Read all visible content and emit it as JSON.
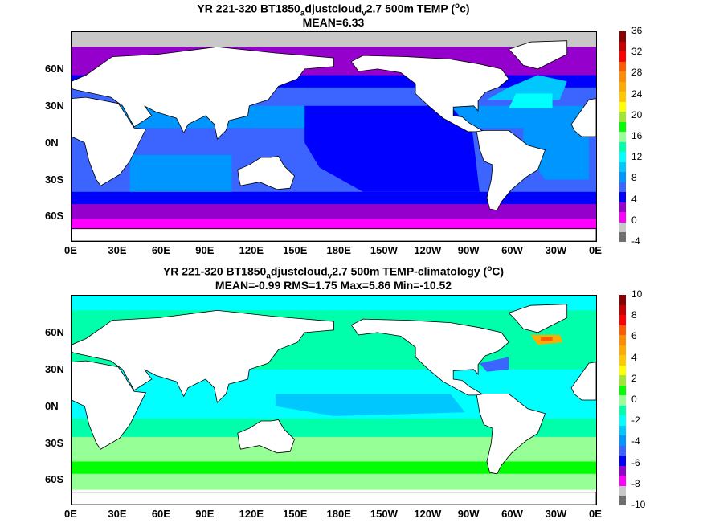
{
  "chart_data": [
    {
      "type": "heatmap",
      "title_parts": {
        "a": "YR 221-320 BT1850",
        "sub1": "a",
        "b": "djustcloud",
        "sub2": "v",
        "c": "2.7 500m TEMP (",
        "sup": "o",
        "d": "c)"
      },
      "subtitle": "MEAN=6.33",
      "x_ticks": [
        "0E",
        "30E",
        "60E",
        "90E",
        "120E",
        "150E",
        "180E",
        "150W",
        "120W",
        "90W",
        "60W",
        "30W",
        "0E"
      ],
      "y_ticks": [
        "60N",
        "30N",
        "0N",
        "30S",
        "60S"
      ],
      "y_tick_values": [
        60,
        30,
        0,
        -30,
        -60
      ],
      "xlim": [
        0,
        360
      ],
      "ylim": [
        -80,
        90
      ],
      "colorbar": {
        "ticks": [
          "-4",
          "0",
          "4",
          "8",
          "12",
          "16",
          "20",
          "24",
          "28",
          "32",
          "36"
        ],
        "colors": [
          "#6e6e6e",
          "#c8c8c8",
          "#ff00ff",
          "#9600cd",
          "#0000ff",
          "#3c64ff",
          "#0096ff",
          "#00c8ff",
          "#00ffff",
          "#00ffaa",
          "#96ff96",
          "#00ff00",
          "#a0e632",
          "#ffff00",
          "#ffc800",
          "#ffaa00",
          "#ff8c00",
          "#ff5a00",
          "#ff0000",
          "#c80000",
          "#8b0000"
        ]
      }
    },
    {
      "type": "heatmap",
      "title_parts": {
        "a": "YR 221-320 BT1850",
        "sub1": "a",
        "b": "djustcloud",
        "sub2": "v",
        "c": "2.7 500m TEMP-climatology (",
        "sup": "o",
        "d": "C)"
      },
      "subtitle": "MEAN=-0.99   RMS=1.75   Max=5.86   Min=-10.52",
      "x_ticks": [
        "0E",
        "30E",
        "60E",
        "90E",
        "120E",
        "150E",
        "180E",
        "150W",
        "120W",
        "90W",
        "60W",
        "30W",
        "0E"
      ],
      "y_ticks": [
        "60N",
        "30N",
        "0N",
        "30S",
        "60S"
      ],
      "y_tick_values": [
        60,
        30,
        0,
        -30,
        -60
      ],
      "xlim": [
        0,
        360
      ],
      "ylim": [
        -80,
        90
      ],
      "colorbar": {
        "ticks": [
          "-10",
          "-8",
          "-6",
          "-4",
          "-2",
          "0",
          "2",
          "4",
          "6",
          "8",
          "10"
        ],
        "colors": [
          "#6e6e6e",
          "#c8c8c8",
          "#ff00ff",
          "#9600cd",
          "#0000ff",
          "#3c64ff",
          "#0096ff",
          "#00c8ff",
          "#00ffff",
          "#00ffaa",
          "#96ff96",
          "#00ff00",
          "#a0e632",
          "#ffff00",
          "#ffc800",
          "#ffaa00",
          "#ff8c00",
          "#ff5a00",
          "#ff0000",
          "#c80000",
          "#8b0000"
        ]
      }
    }
  ]
}
